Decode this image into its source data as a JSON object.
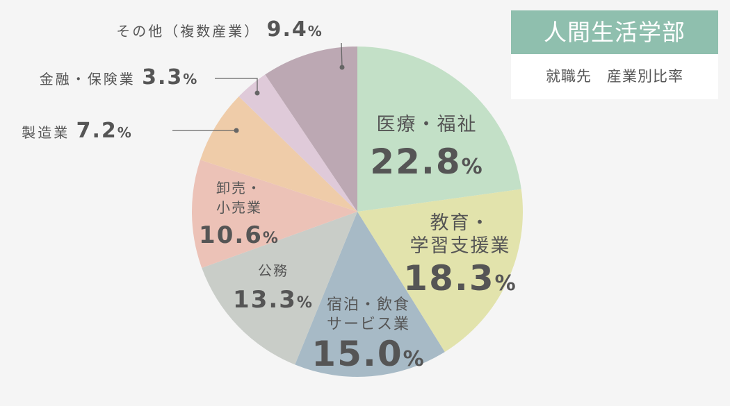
{
  "title_box": {
    "title": "人間生活学部",
    "subtitle": "就職先　産業別比率"
  },
  "colors": {
    "background": "#f5f5f5",
    "title_band": "#8fbfae",
    "label_text": "#555555"
  },
  "chart_data": {
    "type": "pie",
    "unit": "%",
    "start": "12 o'clock",
    "direction": "clockwise",
    "slices": [
      {
        "lines": [
          "医療・福祉"
        ],
        "value": 22.8,
        "color": "#c3e0c7"
      },
      {
        "lines": [
          "教育・",
          "学習支援業"
        ],
        "value": 18.3,
        "color": "#e2e3ac"
      },
      {
        "lines": [
          "宿泊・飲食",
          "サービス業"
        ],
        "value": 15.0,
        "color": "#a7bac6"
      },
      {
        "lines": [
          "公務"
        ],
        "value": 13.3,
        "color": "#c9cdc8"
      },
      {
        "lines": [
          "卸売・",
          "小売業"
        ],
        "value": 10.6,
        "color": "#ecc2b7"
      },
      {
        "lines": [
          "製造業"
        ],
        "value": 7.2,
        "color": "#efcca9"
      },
      {
        "lines": [
          "金融・保険業"
        ],
        "value": 3.3,
        "color": "#dfcad9"
      },
      {
        "lines": [
          "その他（複数産業）"
        ],
        "value": 9.4,
        "color": "#bca8b3"
      }
    ]
  }
}
